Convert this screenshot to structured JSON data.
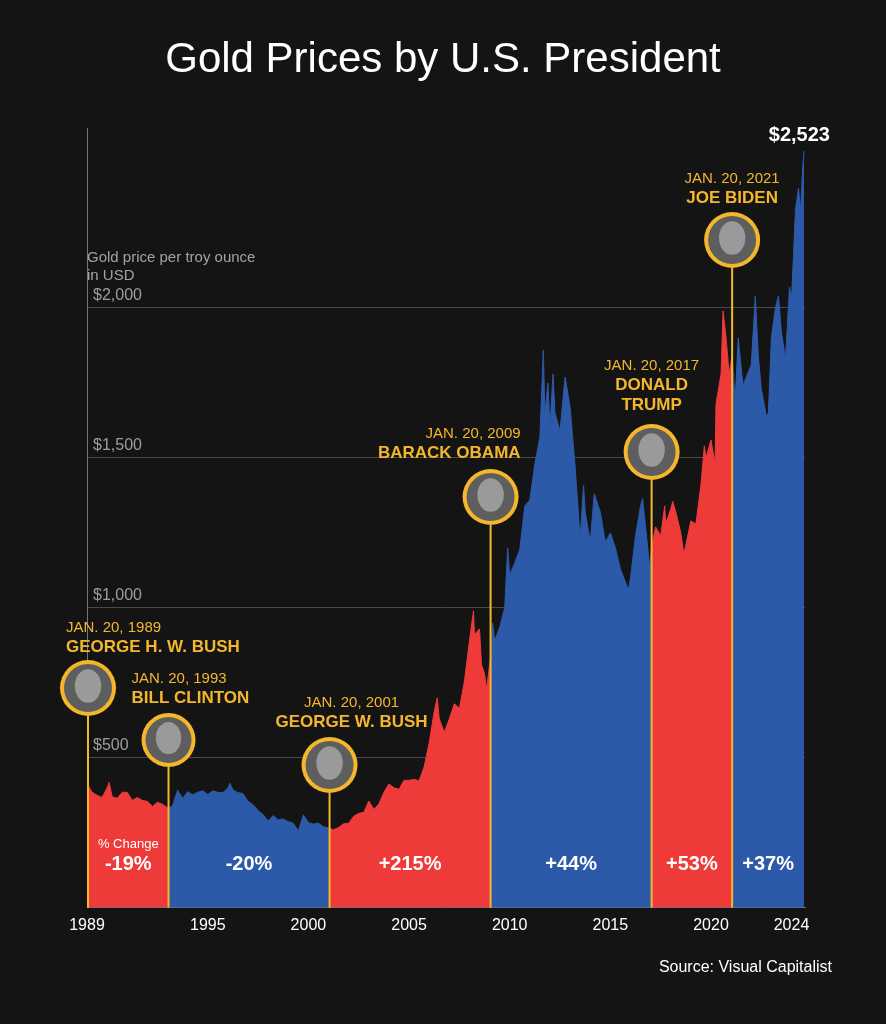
{
  "chart_data": {
    "type": "area",
    "title": "Gold Prices by U.S. President",
    "y_label": "Gold price per troy ounce in USD",
    "source": "Source: Visual Capitalist",
    "change_header": "% Change",
    "end_label": "$2,523",
    "xlim": [
      1989,
      2024.67
    ],
    "xticks": [
      1989,
      1995,
      2000,
      2005,
      2010,
      2015,
      2020,
      2024
    ],
    "ylim": [
      0,
      2600
    ],
    "yticks": [
      {
        "value": 500,
        "label": "$500"
      },
      {
        "value": 1000,
        "label": "$1,000"
      },
      {
        "value": 1500,
        "label": "$1,500"
      },
      {
        "value": 2000,
        "label": "$2,000"
      }
    ],
    "grid": true,
    "series": [
      {
        "name": "GEORGE H. W. BUSH",
        "date": "JAN. 20, 1989",
        "change": "-19%",
        "color": "#ef3a3a",
        "x": [
          1989.05,
          1989.25,
          1989.5,
          1989.75,
          1990,
          1990.1,
          1990.25,
          1990.5,
          1990.75,
          1991,
          1991.25,
          1991.5,
          1991.75,
          1992,
          1992.25,
          1992.5,
          1992.75,
          1993.05
        ],
        "values": [
          409,
          385,
          375,
          368,
          400,
          418,
          370,
          365,
          385,
          385,
          358,
          368,
          358,
          355,
          338,
          352,
          345,
          331
        ]
      },
      {
        "name": "BILL CLINTON",
        "date": "JAN. 20, 1993",
        "change": "-20%",
        "color": "#2c5aa8",
        "x": [
          1993.05,
          1993.25,
          1993.5,
          1993.75,
          1994,
          1994.25,
          1994.5,
          1994.75,
          1995,
          1995.25,
          1995.5,
          1995.75,
          1996,
          1996.1,
          1996.25,
          1996.5,
          1996.75,
          1997,
          1997.25,
          1997.5,
          1997.75,
          1998,
          1998.25,
          1998.5,
          1998.75,
          1999,
          1999.25,
          1999.5,
          1999.75,
          2000,
          2000.25,
          2000.5,
          2000.75,
          2001.05
        ],
        "values": [
          331,
          340,
          392,
          365,
          387,
          377,
          385,
          390,
          378,
          390,
          385,
          384,
          400,
          415,
          393,
          384,
          381,
          355,
          344,
          324,
          311,
          289,
          308,
          293,
          296,
          287,
          282,
          256,
          310,
          284,
          279,
          282,
          270,
          265
        ]
      },
      {
        "name": "GEORGE W. BUSH",
        "date": "JAN. 20, 2001",
        "change": "+215%",
        "color": "#ef3a3a",
        "x": [
          2001.05,
          2001.25,
          2001.5,
          2001.75,
          2002,
          2002.25,
          2002.5,
          2002.75,
          2003,
          2003.25,
          2003.5,
          2003.75,
          2004,
          2004.25,
          2004.5,
          2004.75,
          2005,
          2005.25,
          2005.5,
          2005.75,
          2006,
          2006.25,
          2006.4,
          2006.5,
          2006.75,
          2007,
          2007.25,
          2007.5,
          2007.75,
          2008,
          2008.2,
          2008.25,
          2008.5,
          2008.6,
          2008.75,
          2008.85,
          2009.05
        ],
        "values": [
          265,
          260,
          268,
          280,
          282,
          305,
          315,
          318,
          356,
          328,
          346,
          385,
          413,
          400,
          395,
          425,
          425,
          428,
          424,
          470,
          550,
          655,
          700,
          630,
          585,
          630,
          680,
          665,
          755,
          890,
          990,
          910,
          930,
          810,
          780,
          730,
          836
        ]
      },
      {
        "name": "BARACK OBAMA",
        "date": "JAN. 20, 2009",
        "change": "+44%",
        "color": "#2c5aa8",
        "x": [
          2009.05,
          2009.15,
          2009.25,
          2009.5,
          2009.75,
          2009.9,
          2010,
          2010.25,
          2010.5,
          2010.75,
          2011,
          2011.25,
          2011.5,
          2011.67,
          2011.75,
          2011.9,
          2012,
          2012.15,
          2012.25,
          2012.5,
          2012.75,
          2013,
          2013.25,
          2013.5,
          2013.67,
          2013.75,
          2014,
          2014.2,
          2014.5,
          2014.75,
          2015,
          2015.25,
          2015.5,
          2015.9,
          2016,
          2016.25,
          2016.5,
          2016.6,
          2016.75,
          2016.95,
          2017.05
        ],
        "values": [
          836,
          950,
          890,
          935,
          1000,
          1200,
          1110,
          1150,
          1195,
          1340,
          1360,
          1480,
          1570,
          1860,
          1650,
          1750,
          1600,
          1780,
          1650,
          1590,
          1770,
          1670,
          1470,
          1230,
          1410,
          1320,
          1220,
          1380,
          1320,
          1220,
          1250,
          1200,
          1130,
          1060,
          1100,
          1240,
          1340,
          1365,
          1270,
          1140,
          1204
        ]
      },
      {
        "name": "DONALD TRUMP",
        "date": "JAN. 20, 2017",
        "change": "+53%",
        "color": "#ef3a3a",
        "x": [
          2017.05,
          2017.25,
          2017.5,
          2017.7,
          2017.75,
          2018,
          2018.1,
          2018.25,
          2018.5,
          2018.65,
          2018.75,
          2019,
          2019.25,
          2019.5,
          2019.67,
          2019.75,
          2020,
          2020.2,
          2020.25,
          2020.5,
          2020.6,
          2020.75,
          2020.9,
          2021.05
        ],
        "values": [
          1204,
          1270,
          1240,
          1340,
          1280,
          1330,
          1355,
          1320,
          1250,
          1180,
          1210,
          1290,
          1280,
          1410,
          1540,
          1500,
          1560,
          1480,
          1680,
          1780,
          1990,
          1900,
          1780,
          1842
        ]
      },
      {
        "name": "JOE BIDEN",
        "date": "JAN. 20, 2021",
        "change": "+37%",
        "color": "#2c5aa8",
        "x": [
          2021.05,
          2021.2,
          2021.35,
          2021.5,
          2021.6,
          2021.75,
          2022,
          2022.2,
          2022.35,
          2022.5,
          2022.75,
          2022.85,
          2023,
          2023.2,
          2023.35,
          2023.5,
          2023.7,
          2023.9,
          2024,
          2024.2,
          2024.35,
          2024.45,
          2024.55,
          2024.62
        ],
        "values": [
          1842,
          1690,
          1900,
          1800,
          1740,
          1770,
          1810,
          2040,
          1840,
          1730,
          1640,
          1650,
          1900,
          2000,
          2040,
          1920,
          1830,
          2070,
          2030,
          2330,
          2400,
          2320,
          2460,
          2523
        ]
      }
    ]
  }
}
